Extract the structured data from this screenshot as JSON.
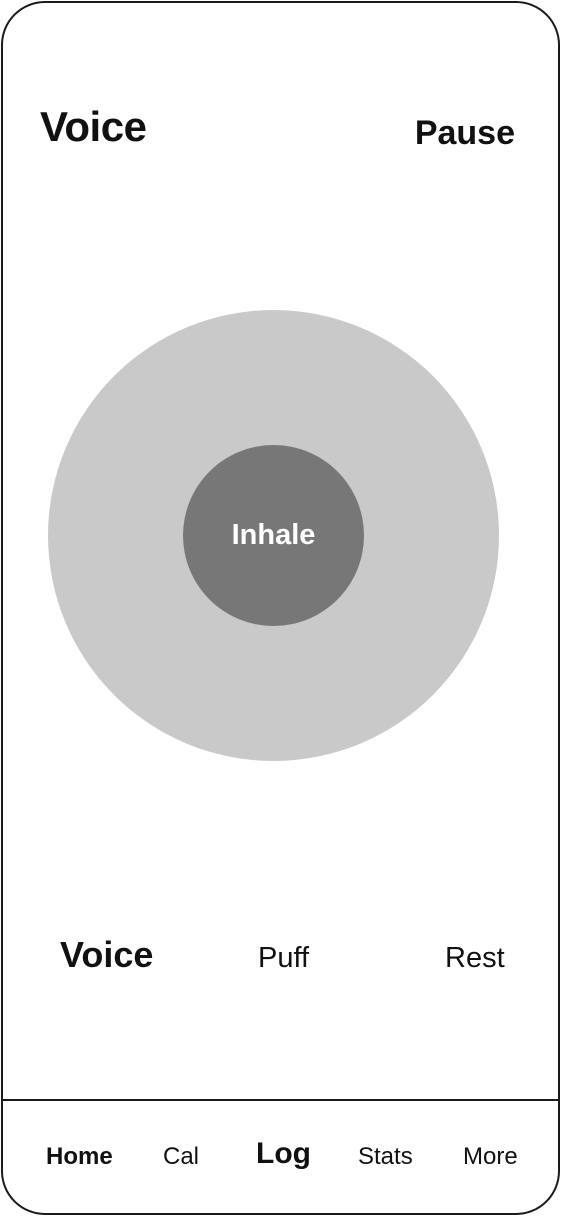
{
  "header": {
    "title": "Voice",
    "pause_label": "Pause"
  },
  "breath": {
    "phase_label": "Inhale"
  },
  "modes": {
    "voice_label": "Voice",
    "puff_label": "Puff",
    "rest_label": "Rest",
    "selected": "Voice"
  },
  "tabbar": {
    "items": [
      {
        "label": "Home"
      },
      {
        "label": "Cal"
      },
      {
        "label": "Log"
      },
      {
        "label": "Stats"
      },
      {
        "label": "More"
      }
    ]
  },
  "colors": {
    "outer_circle": "#c9c9c9",
    "inner_circle": "#777777",
    "frame": "#1a1a1a"
  }
}
